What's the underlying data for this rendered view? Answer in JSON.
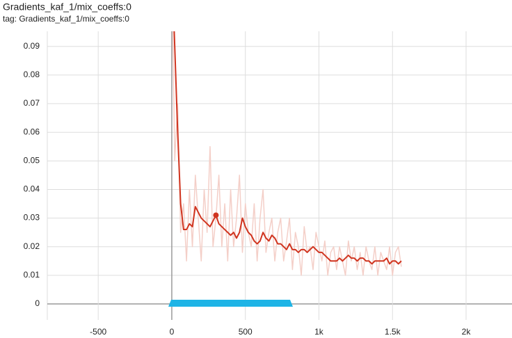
{
  "chart_data": {
    "type": "line",
    "title": "Gradients_kaf_1/mix_coeffs:0",
    "subtitle": "tag: Gradients_kaf_1/mix_coeffs:0",
    "x": [
      0,
      20,
      40,
      60,
      80,
      100,
      120,
      140,
      160,
      180,
      200,
      220,
      240,
      260,
      280,
      300,
      320,
      340,
      360,
      380,
      400,
      420,
      440,
      460,
      480,
      500,
      520,
      540,
      560,
      580,
      600,
      620,
      640,
      660,
      680,
      700,
      720,
      740,
      760,
      780,
      800,
      820,
      840,
      860,
      880,
      900,
      920,
      940,
      960,
      980,
      1000,
      1020,
      1040,
      1060,
      1080,
      1100,
      1120,
      1140,
      1160,
      1180,
      1200,
      1220,
      1240,
      1260,
      1280,
      1300,
      1320,
      1340,
      1360,
      1380,
      1400,
      1420,
      1440,
      1460,
      1480,
      1500,
      1520,
      1540,
      1560
    ],
    "series": [
      {
        "color": "#f4cfc8",
        "values": [
          0.12,
          0.05,
          0.07,
          0.025,
          0.035,
          0.015,
          0.04,
          0.02,
          0.045,
          0.03,
          0.015,
          0.04,
          0.025,
          0.055,
          0.02,
          0.03,
          0.045,
          0.02,
          0.035,
          0.015,
          0.04,
          0.02,
          0.03,
          0.045,
          0.018,
          0.035,
          0.025,
          0.02,
          0.035,
          0.015,
          0.03,
          0.04,
          0.018,
          0.025,
          0.03,
          0.015,
          0.025,
          0.03,
          0.015,
          0.022,
          0.03,
          0.012,
          0.025,
          0.02,
          0.01,
          0.027,
          0.018,
          0.02,
          0.012,
          0.025,
          0.02,
          0.015,
          0.022,
          0.01,
          0.018,
          0.02,
          0.012,
          0.02,
          0.015,
          0.01,
          0.022,
          0.015,
          0.02,
          0.012,
          0.018,
          0.01,
          0.02,
          0.015,
          0.012,
          0.02,
          0.01,
          0.018,
          0.015,
          0.012,
          0.02,
          0.01,
          0.018,
          0.02,
          0.013
        ]
      },
      {
        "color": "#d0341f",
        "values": [
          0.12,
          0.09,
          0.06,
          0.035,
          0.026,
          0.026,
          0.028,
          0.027,
          0.034,
          0.032,
          0.03,
          0.029,
          0.028,
          0.027,
          0.029,
          0.031,
          0.028,
          0.027,
          0.026,
          0.025,
          0.024,
          0.025,
          0.023,
          0.025,
          0.03,
          0.027,
          0.025,
          0.024,
          0.022,
          0.021,
          0.022,
          0.025,
          0.023,
          0.022,
          0.024,
          0.023,
          0.021,
          0.021,
          0.02,
          0.019,
          0.021,
          0.019,
          0.019,
          0.018,
          0.019,
          0.019,
          0.018,
          0.019,
          0.02,
          0.019,
          0.018,
          0.018,
          0.017,
          0.016,
          0.015,
          0.015,
          0.015,
          0.016,
          0.015,
          0.016,
          0.017,
          0.016,
          0.016,
          0.015,
          0.016,
          0.016,
          0.015,
          0.015,
          0.014,
          0.015,
          0.015,
          0.015,
          0.015,
          0.016,
          0.014,
          0.015,
          0.015,
          0.014,
          0.015
        ]
      }
    ],
    "xlim": [
      -846,
      2312
    ],
    "ylim": [
      -0.0056,
      0.0953
    ],
    "xticks": [
      -500,
      0,
      500,
      {
        "value": 1000,
        "label": "1k"
      },
      {
        "value": 1500,
        "label": "1.5k"
      },
      {
        "value": 2000,
        "label": "2k"
      }
    ],
    "yticks": [
      0,
      0.01,
      0.02,
      0.03,
      0.04,
      0.05,
      0.06,
      0.07,
      0.08,
      0.09
    ],
    "grid": true
  }
}
